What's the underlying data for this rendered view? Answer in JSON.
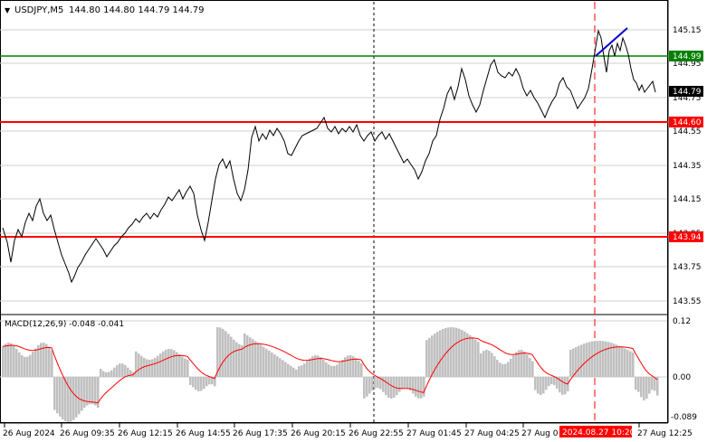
{
  "header": {
    "symbol_tf": "USDJPY,M5",
    "ohlc": "144.80 144.80 144.79 144.79"
  },
  "price_axis": {
    "ticks": [
      "145.15",
      "144.95",
      "144.75",
      "144.55",
      "144.35",
      "144.15",
      "143.95",
      "143.75",
      "143.55"
    ]
  },
  "levels": [
    {
      "name": "resistance-green",
      "price": 144.99,
      "label": "144.99",
      "color": "#008000"
    },
    {
      "name": "level-red-upper",
      "price": 144.6,
      "label": "144.60",
      "color": "#ff0000"
    },
    {
      "name": "level-red-lower",
      "price": 143.94,
      "label": "143.94",
      "color": "#ff0000"
    }
  ],
  "current_price": {
    "label": "144.79",
    "bg": "#000000"
  },
  "macd": {
    "label": "MACD(12,26,9) -0.048 -0.041",
    "ticks": [
      "0.12",
      "0.00",
      "-0.089"
    ],
    "histogram_color": "#c0c0c0",
    "signal_color": "#ff0000"
  },
  "time_axis": {
    "labels": [
      "26 Aug 2024",
      "26 Aug 09:35",
      "26 Aug 12:15",
      "26 Aug 14:55",
      "26 Aug 17:35",
      "26 Aug 20:15",
      "26 Aug 22:55",
      "27 Aug 01:45",
      "27 Aug 04:25",
      "27 Aug 0",
      "27 Aug 12:25"
    ],
    "highlight": {
      "label": "2024.08.27 10:20",
      "bg": "#ff0000",
      "color": "#ffffff"
    }
  },
  "colors": {
    "price_line": "#000000",
    "grid": "#c8c8c8",
    "trend_line": "#0000cd",
    "vertical_marker": "#ff0000",
    "separator": "#000000"
  }
}
